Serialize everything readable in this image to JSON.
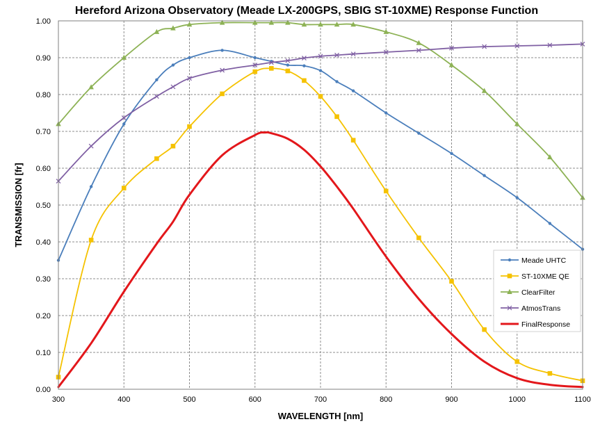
{
  "chart_data": {
    "type": "line",
    "title": "Hereford Arizona Observatory (Meade LX-200GPS, SBIG ST-10XME) Response Function",
    "xlabel": "WAVELENGTH [nm]",
    "ylabel": "TRANSMISSION [fr]",
    "xlim": [
      300,
      1100
    ],
    "ylim": [
      0,
      1
    ],
    "x_ticks": [
      "300",
      "400",
      "500",
      "600",
      "700",
      "800",
      "900",
      "1000",
      "1100"
    ],
    "y_ticks": [
      "0.00",
      "0.10",
      "0.20",
      "0.30",
      "0.40",
      "0.50",
      "0.60",
      "0.70",
      "0.80",
      "0.90",
      "1.00"
    ],
    "grid": "dashed",
    "legend_position": "lower-right",
    "series": [
      {
        "name": "Meade UHTC",
        "color": "#4a7ebb",
        "marker": "circle",
        "points": [
          [
            300,
            0.35
          ],
          [
            350,
            0.55
          ],
          [
            400,
            0.72
          ],
          [
            450,
            0.84
          ],
          [
            475,
            0.88
          ],
          [
            500,
            0.9
          ],
          [
            550,
            0.92
          ],
          [
            600,
            0.9
          ],
          [
            625,
            0.89
          ],
          [
            650,
            0.88
          ],
          [
            675,
            0.878
          ],
          [
            700,
            0.865
          ],
          [
            725,
            0.835
          ],
          [
            750,
            0.81
          ],
          [
            800,
            0.75
          ],
          [
            850,
            0.695
          ],
          [
            900,
            0.64
          ],
          [
            950,
            0.58
          ],
          [
            1000,
            0.52
          ],
          [
            1050,
            0.45
          ],
          [
            1100,
            0.38
          ]
        ]
      },
      {
        "name": "ST-10XME QE",
        "color": "#f5c200",
        "marker": "square",
        "points": [
          [
            300,
            0.033
          ],
          [
            350,
            0.405
          ],
          [
            400,
            0.546
          ],
          [
            450,
            0.626
          ],
          [
            475,
            0.66
          ],
          [
            500,
            0.713
          ],
          [
            550,
            0.802
          ],
          [
            600,
            0.862
          ],
          [
            625,
            0.871
          ],
          [
            650,
            0.864
          ],
          [
            675,
            0.838
          ],
          [
            700,
            0.795
          ],
          [
            725,
            0.74
          ],
          [
            750,
            0.676
          ],
          [
            800,
            0.538
          ],
          [
            850,
            0.411
          ],
          [
            900,
            0.293
          ],
          [
            950,
            0.162
          ],
          [
            1000,
            0.075
          ],
          [
            1050,
            0.043
          ],
          [
            1100,
            0.023
          ]
        ]
      },
      {
        "name": "ClearFilter",
        "color": "#8db255",
        "marker": "triangle",
        "points": [
          [
            300,
            0.72
          ],
          [
            350,
            0.82
          ],
          [
            400,
            0.9
          ],
          [
            450,
            0.97
          ],
          [
            475,
            0.98
          ],
          [
            500,
            0.99
          ],
          [
            550,
            0.995
          ],
          [
            600,
            0.995
          ],
          [
            625,
            0.995
          ],
          [
            650,
            0.995
          ],
          [
            675,
            0.99
          ],
          [
            700,
            0.99
          ],
          [
            725,
            0.99
          ],
          [
            750,
            0.99
          ],
          [
            800,
            0.97
          ],
          [
            850,
            0.94
          ],
          [
            900,
            0.88
          ],
          [
            950,
            0.81
          ],
          [
            1000,
            0.72
          ],
          [
            1050,
            0.63
          ],
          [
            1100,
            0.52
          ]
        ]
      },
      {
        "name": "AtmosTrans",
        "color": "#7f5fa3",
        "marker": "x",
        "points": [
          [
            300,
            0.565
          ],
          [
            350,
            0.66
          ],
          [
            400,
            0.737
          ],
          [
            450,
            0.795
          ],
          [
            475,
            0.821
          ],
          [
            500,
            0.844
          ],
          [
            550,
            0.866
          ],
          [
            600,
            0.88
          ],
          [
            625,
            0.887
          ],
          [
            650,
            0.892
          ],
          [
            675,
            0.899
          ],
          [
            700,
            0.904
          ],
          [
            725,
            0.907
          ],
          [
            750,
            0.91
          ],
          [
            800,
            0.915
          ],
          [
            850,
            0.92
          ],
          [
            900,
            0.926
          ],
          [
            950,
            0.93
          ],
          [
            1000,
            0.932
          ],
          [
            1050,
            0.934
          ],
          [
            1100,
            0.937
          ]
        ]
      },
      {
        "name": "FinalResponse",
        "color": "#e3171b",
        "marker": "none",
        "points": [
          [
            300,
            0.006
          ],
          [
            350,
            0.125
          ],
          [
            400,
            0.265
          ],
          [
            450,
            0.395
          ],
          [
            475,
            0.455
          ],
          [
            500,
            0.528
          ],
          [
            550,
            0.635
          ],
          [
            600,
            0.69
          ],
          [
            615,
            0.697
          ],
          [
            625,
            0.695
          ],
          [
            650,
            0.68
          ],
          [
            675,
            0.65
          ],
          [
            700,
            0.605
          ],
          [
            725,
            0.55
          ],
          [
            750,
            0.49
          ],
          [
            800,
            0.36
          ],
          [
            850,
            0.245
          ],
          [
            900,
            0.15
          ],
          [
            950,
            0.075
          ],
          [
            1000,
            0.03
          ],
          [
            1050,
            0.012
          ],
          [
            1100,
            0.006
          ]
        ]
      }
    ]
  }
}
